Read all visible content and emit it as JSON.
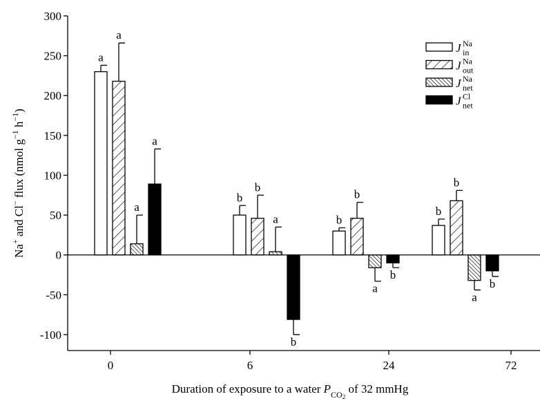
{
  "chart_data": {
    "type": "bar",
    "ylabel": [
      {
        "text": "Na"
      },
      {
        "text": "+",
        "shift": "super"
      },
      {
        "text": " and Cl"
      },
      {
        "text": "−",
        "shift": "super"
      },
      {
        "text": " flux (nmol g"
      },
      {
        "text": "−1",
        "shift": "super"
      },
      {
        "text": " h"
      },
      {
        "text": "−1",
        "shift": "super"
      },
      {
        "text": ")"
      }
    ],
    "xlabel": [
      {
        "text": "Duration of exposure to a water "
      },
      {
        "text": "P",
        "italic": true
      },
      {
        "text": "CO",
        "shift": "sub"
      },
      {
        "text": "2",
        "shift": "sub2"
      },
      {
        "text": " of 32 mmHg"
      }
    ],
    "categories": [
      "0",
      "6",
      "24",
      "72"
    ],
    "ylim": [
      -120,
      300
    ],
    "yticks": [
      -100,
      -50,
      0,
      50,
      100,
      150,
      200,
      250,
      300
    ],
    "zero_line": true,
    "legend": "upper right",
    "series": [
      {
        "name": {
          "main": "J",
          "sub": "in",
          "sup": "Na"
        },
        "color": "#000",
        "pattern": "none",
        "values": [
          230,
          50,
          30,
          37
        ],
        "errors": [
          8,
          12,
          4,
          8
        ],
        "letters": [
          "a",
          "b",
          "b",
          "b"
        ]
      },
      {
        "name": {
          "main": "J",
          "sub": "out",
          "sup": "Na"
        },
        "color": "#000",
        "pattern": "wide-hatch",
        "values": [
          218,
          46,
          46,
          68
        ],
        "errors": [
          48,
          29,
          20,
          13
        ],
        "letters": [
          "a",
          "b",
          "b",
          "b"
        ]
      },
      {
        "name": {
          "main": "J",
          "sub": "net",
          "sup": "Na"
        },
        "color": "#000",
        "pattern": "dense-hatch",
        "values": [
          14,
          4,
          -16,
          -32
        ],
        "errors": [
          36,
          31,
          17,
          12
        ],
        "letters": [
          "a",
          "a",
          "a",
          "a"
        ]
      },
      {
        "name": {
          "main": "J",
          "sub": "net",
          "sup": "Cl"
        },
        "color": "#000",
        "pattern": "solid",
        "values": [
          89,
          -81,
          -10,
          -20
        ],
        "errors": [
          44,
          19,
          6,
          7
        ],
        "letters": [
          "a",
          "b",
          "b",
          "b"
        ]
      }
    ]
  }
}
